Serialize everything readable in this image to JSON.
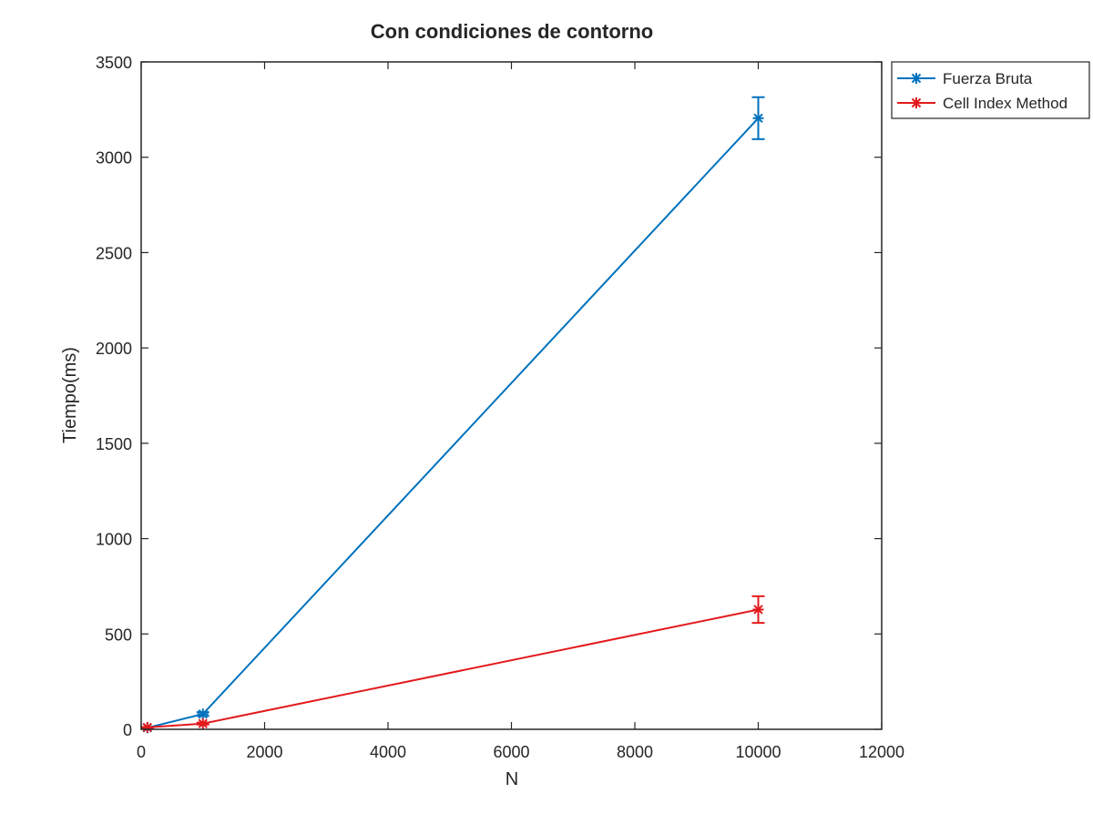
{
  "chart_data": {
    "type": "line",
    "title": "Con condiciones de contorno",
    "xlabel": "N",
    "ylabel": "Tiempo(ms)",
    "xlim": [
      0,
      12000
    ],
    "ylim": [
      0,
      3500
    ],
    "xticks": [
      0,
      2000,
      4000,
      6000,
      8000,
      10000,
      12000
    ],
    "yticks": [
      0,
      500,
      1000,
      1500,
      2000,
      2500,
      3000,
      3500
    ],
    "grid": false,
    "legend_position": "outside top-right",
    "series": [
      {
        "name": "Fuerza Bruta",
        "color": "#0072BD",
        "marker": "asterisk",
        "x": [
          100,
          1000,
          10000
        ],
        "y": [
          8,
          80,
          3205
        ],
        "error": [
          2,
          10,
          110
        ]
      },
      {
        "name": "Cell Index Method",
        "color": "#E31A1C",
        "marker": "asterisk",
        "x": [
          100,
          1000,
          10000
        ],
        "y": [
          10,
          30,
          628
        ],
        "error": [
          2,
          5,
          70
        ]
      }
    ]
  }
}
